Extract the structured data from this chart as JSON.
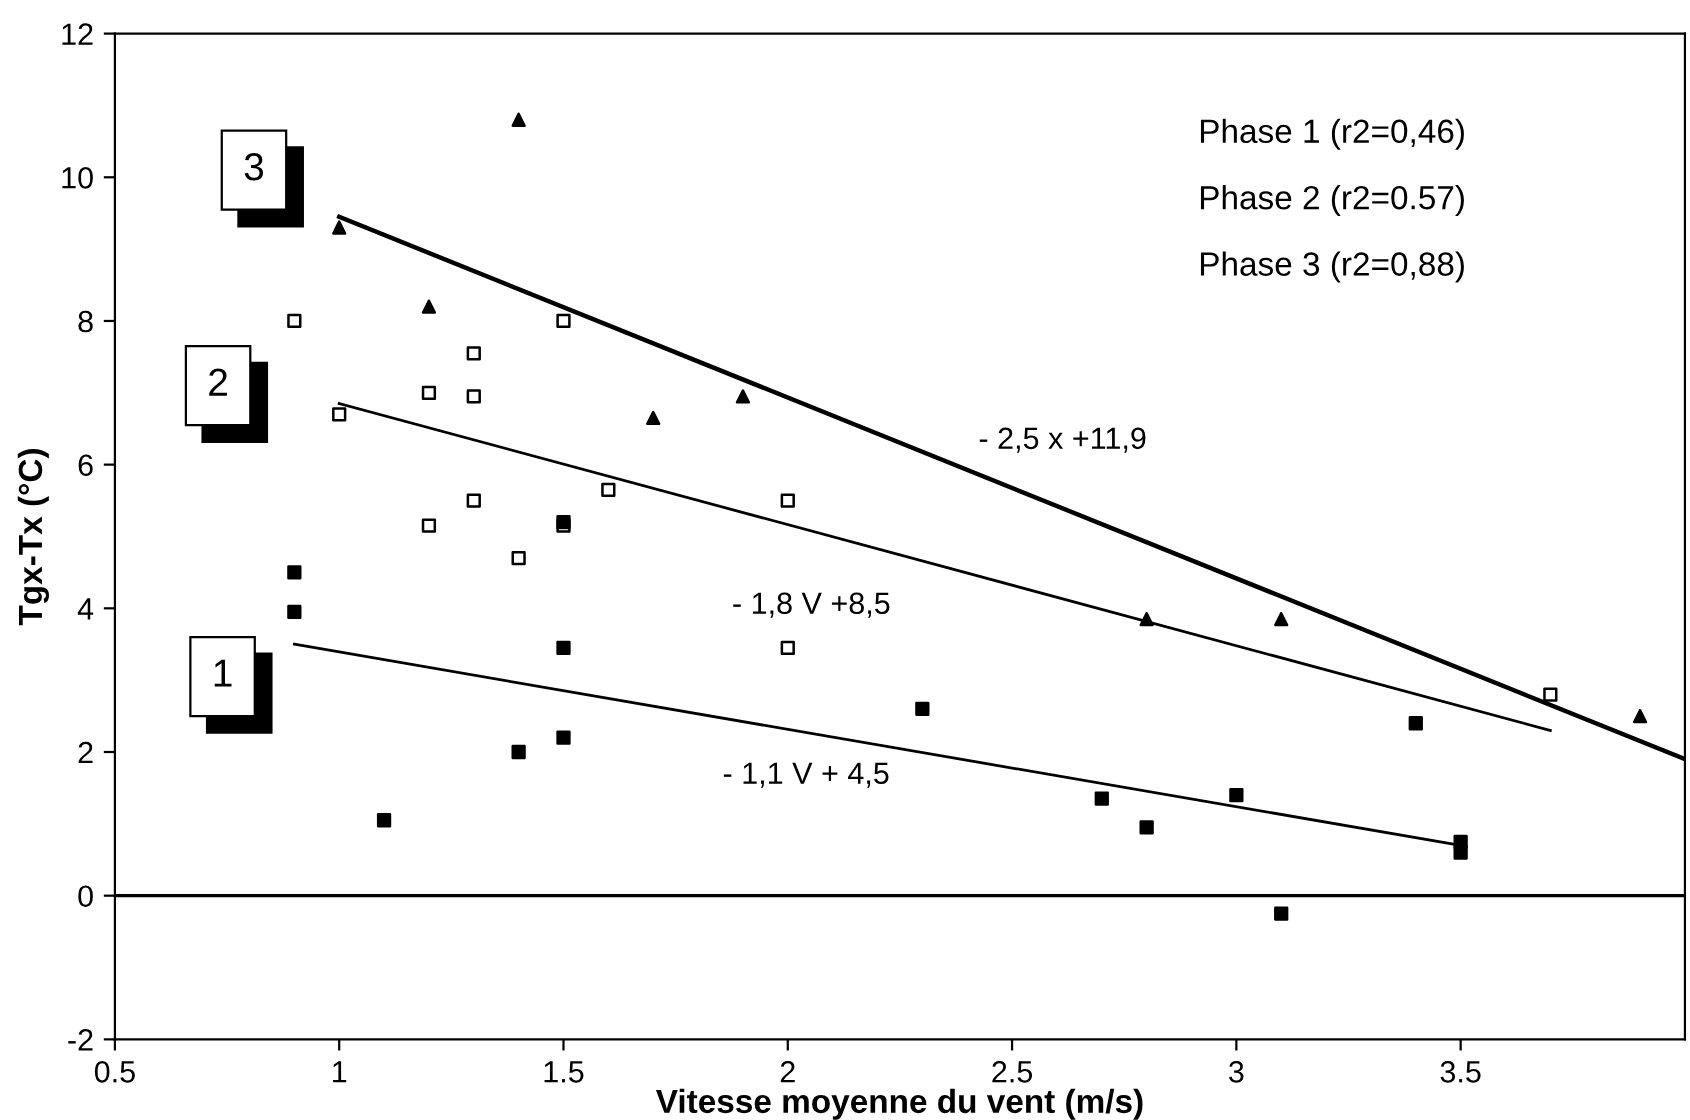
{
  "chart_data": {
    "type": "scatter",
    "xlabel": "Vitesse moyenne du vent (m/s)",
    "ylabel": "Tgx-Tx (°C)",
    "xlim": [
      0.5,
      4
    ],
    "ylim": [
      -2,
      12
    ],
    "xticks": [
      0.5,
      1,
      1.5,
      2,
      2.5,
      3,
      3.5
    ],
    "yticks": [
      -2,
      0,
      2,
      4,
      6,
      8,
      10,
      12
    ],
    "grid": false,
    "legend": false,
    "series": [
      {
        "marker": "square",
        "color": "#000000",
        "x": [
          0.9,
          0.9,
          1.1,
          1.4,
          1.5,
          1.5,
          1.5,
          2.3,
          2.7,
          2.8,
          3.0,
          3.1,
          3.4,
          3.5,
          3.5
        ],
        "values": [
          4.5,
          3.95,
          1.05,
          2.0,
          3.45,
          2.2,
          5.2,
          2.6,
          1.35,
          0.95,
          1.4,
          -0.25,
          2.4,
          0.75,
          0.6
        ]
      },
      {
        "marker": "square",
        "color": "#ffffff",
        "x": [
          0.9,
          1.0,
          1.2,
          1.3,
          1.3,
          1.5,
          1.6,
          1.3,
          2.0,
          1.2,
          1.5,
          1.4,
          2.0,
          3.7
        ],
        "values": [
          8.0,
          6.7,
          7.0,
          7.55,
          6.95,
          8.0,
          5.65,
          5.5,
          5.5,
          5.15,
          5.15,
          4.7,
          3.45,
          2.8
        ]
      },
      {
        "marker": "triangle",
        "color": "#000000",
        "x": [
          1.0,
          1.2,
          1.4,
          1.7,
          1.9,
          2.8,
          3.1,
          3.9
        ],
        "values": [
          9.3,
          8.2,
          10.8,
          6.65,
          6.95,
          3.85,
          3.85,
          2.5
        ]
      },
      {
        "type": "line",
        "color": "#000000",
        "marker": "none",
        "line_style": "solid",
        "x": [
          0.9,
          3.5
        ],
        "values": [
          3.5,
          0.7
        ]
      },
      {
        "type": "line",
        "color": "#000000",
        "marker": "none",
        "line_style": "solid",
        "x": [
          1.0,
          3.7
        ],
        "values": [
          6.85,
          2.3
        ]
      },
      {
        "type": "line",
        "color": "#000000",
        "marker": "none",
        "line_style": "solid",
        "x": [
          1.0,
          4.0
        ],
        "values": [
          9.45,
          1.9
        ]
      }
    ],
    "ref_lines": [
      {
        "axis": "y",
        "value": 0,
        "label": null,
        "color": "#000000",
        "line_style": "solid"
      }
    ],
    "annotations": [
      {
        "text": "3",
        "x": 0.81,
        "y": 10.1
      },
      {
        "text": "2",
        "x": 0.73,
        "y": 7.1
      },
      {
        "text": "1",
        "x": 0.74,
        "y": 3.05
      },
      "- 2,5 x +11,9",
      "- 1,8 V +8,5",
      "- 1,1 V + 4,5",
      "Phase 1 (r2=0,46)",
      "Phase 2 (r2=0.57)",
      "Phase 3 (r2=0,88)"
    ]
  }
}
